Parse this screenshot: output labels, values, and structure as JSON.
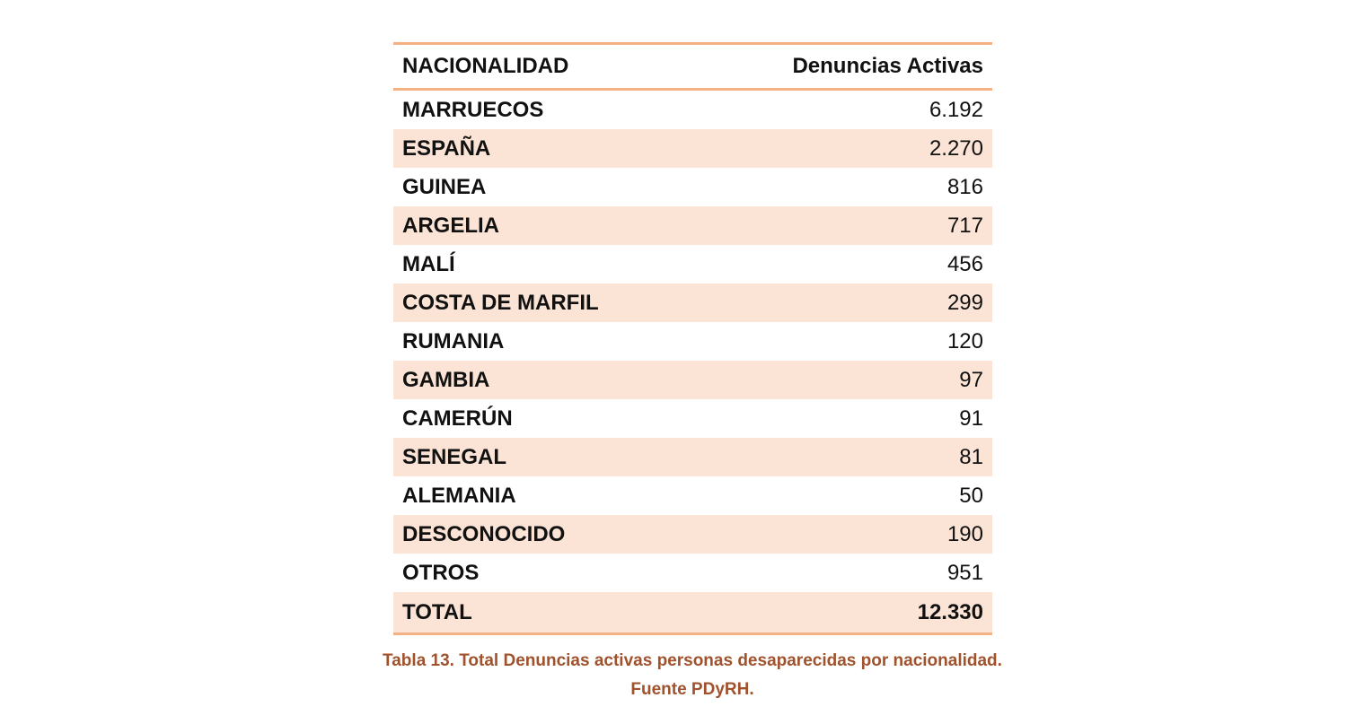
{
  "table": {
    "headers": {
      "nationality": "NACIONALIDAD",
      "active_reports": "Denuncias Activas"
    },
    "rows": [
      {
        "nationality": "MARRUECOS",
        "value": "6.192"
      },
      {
        "nationality": "ESPAÑA",
        "value": "2.270"
      },
      {
        "nationality": "GUINEA",
        "value": "816"
      },
      {
        "nationality": "ARGELIA",
        "value": "717"
      },
      {
        "nationality": "MALÍ",
        "value": "456"
      },
      {
        "nationality": "COSTA DE MARFIL",
        "value": "299"
      },
      {
        "nationality": "RUMANIA",
        "value": "120"
      },
      {
        "nationality": "GAMBIA",
        "value": "97"
      },
      {
        "nationality": "CAMERÚN",
        "value": "91"
      },
      {
        "nationality": "SENEGAL",
        "value": "81"
      },
      {
        "nationality": "ALEMANIA",
        "value": "50"
      },
      {
        "nationality": "DESCONOCIDO",
        "value": "190"
      },
      {
        "nationality": "OTROS",
        "value": "951"
      }
    ],
    "total": {
      "label": "TOTAL",
      "value": "12.330"
    }
  },
  "caption": {
    "line1": "Tabla 13. Total Denuncias activas personas desaparecidas por nacionalidad.",
    "line2": "Fuente PDyRH."
  },
  "colors": {
    "border": "#f4b183",
    "stripe": "#fbe4d5",
    "caption": "#a0522d"
  }
}
